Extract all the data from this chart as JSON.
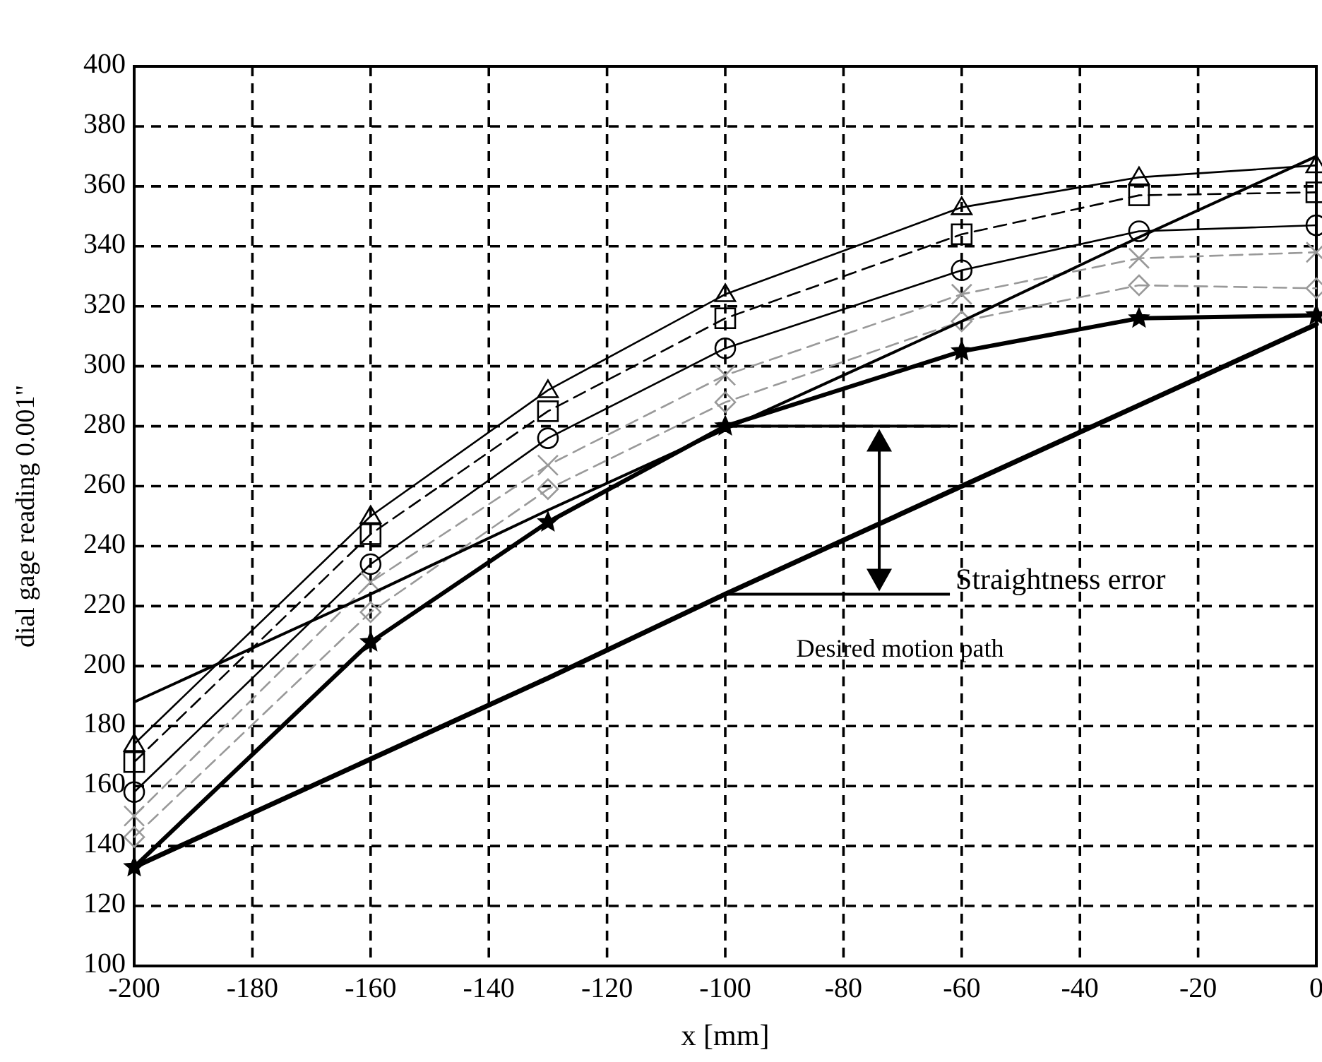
{
  "chart_data": {
    "type": "line",
    "xlabel": "x [mm]",
    "ylabel": "dial gage reading 0.001\"",
    "x": [
      -200,
      -160,
      -130,
      -100,
      -60,
      -30,
      0
    ],
    "series": [
      {
        "color": "#000000",
        "marker": "triangle",
        "line_style": "solid",
        "values": [
          174,
          250,
          292,
          324,
          353,
          363,
          367
        ]
      },
      {
        "color": "#000000",
        "marker": "square",
        "line_style": "dashed",
        "values": [
          168,
          244,
          285,
          316,
          344,
          357,
          358
        ]
      },
      {
        "color": "#000000",
        "marker": "circle",
        "line_style": "solid",
        "values": [
          158,
          234,
          276,
          306,
          332,
          345,
          347
        ]
      },
      {
        "color": "#999999",
        "marker": "cross",
        "line_style": "dashed",
        "values": [
          150,
          228,
          267,
          297,
          324,
          336,
          338
        ]
      },
      {
        "color": "#999999",
        "marker": "diamond",
        "line_style": "dashed",
        "values": [
          143,
          218,
          259,
          288,
          315,
          327,
          326
        ]
      },
      {
        "color": "#000000",
        "marker": "star",
        "line_style": "solid",
        "values": [
          133,
          208,
          248,
          280,
          305,
          316,
          317
        ]
      },
      {
        "color": "#000000",
        "marker": "none",
        "line_style": "solid",
        "values": [
          188,
          224,
          252,
          279,
          315,
          343,
          370
        ]
      },
      {
        "color": "#000000",
        "marker": "none",
        "line_style": "solid",
        "values": [
          133,
          169,
          196,
          224,
          260,
          287,
          314
        ]
      }
    ],
    "annotations": [
      {
        "text": "Straightness error",
        "x": -100,
        "y": 224
      },
      "Desired motion path"
    ],
    "xlim": [
      -200,
      0
    ],
    "ylim": [
      100,
      400
    ],
    "xticks": [
      -200,
      -180,
      -160,
      -140,
      -120,
      -100,
      -80,
      -60,
      -40,
      -20,
      0
    ],
    "yticks": [
      100,
      120,
      140,
      160,
      180,
      200,
      220,
      240,
      260,
      280,
      300,
      320,
      340,
      360,
      380,
      400
    ],
    "grid": true
  }
}
